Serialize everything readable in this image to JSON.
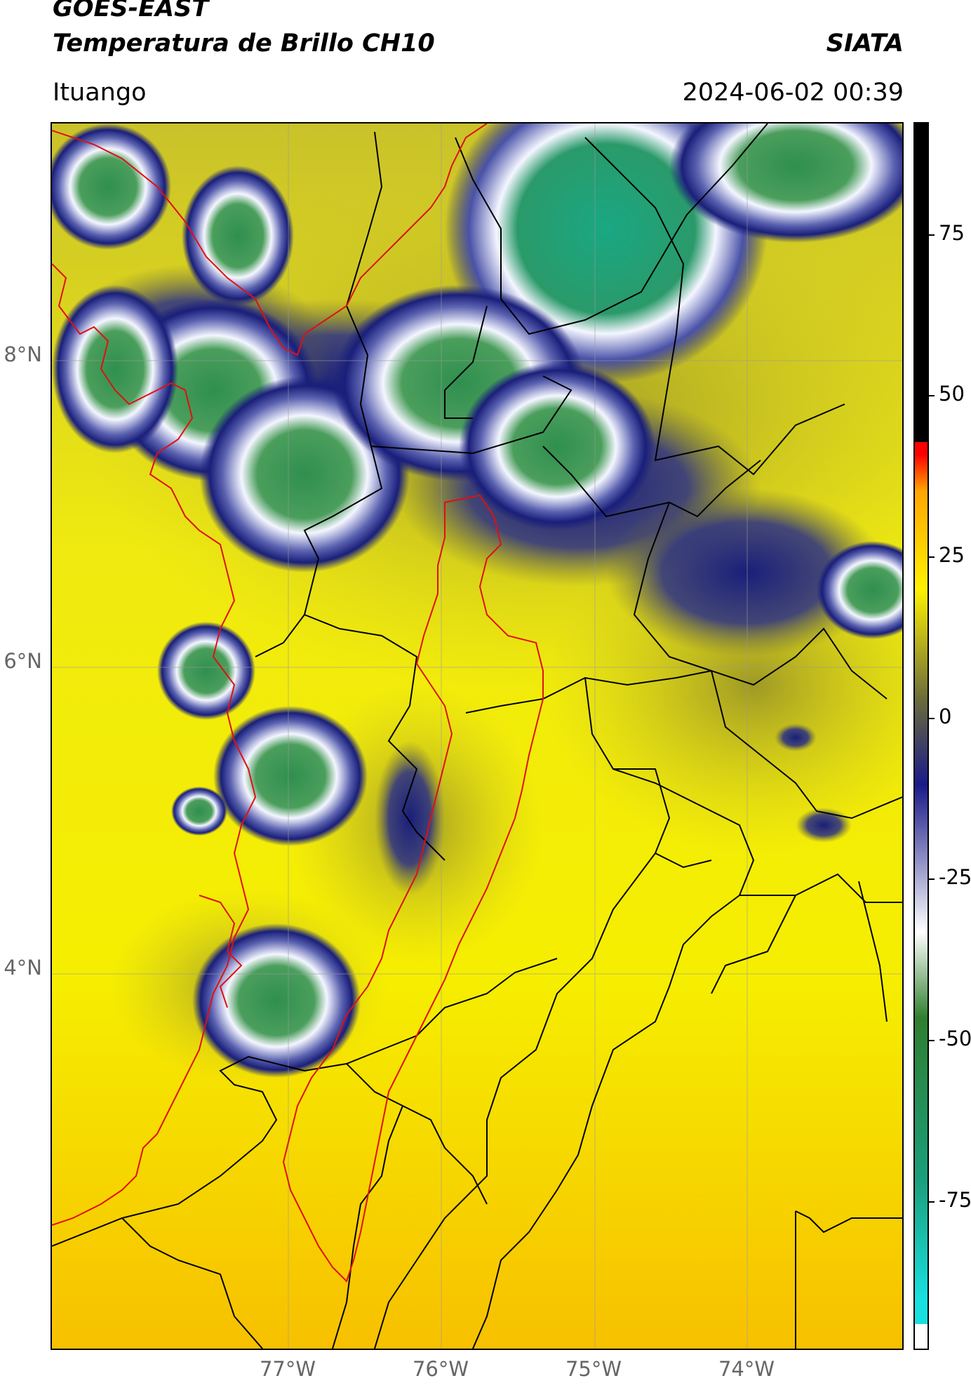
{
  "header": {
    "satellite": "GOES-EAST",
    "product": "Temperatura de Brillo CH10",
    "brand": "SIATA",
    "location": "Ituango",
    "timestamp": "2024-06-02 00:39"
  },
  "map": {
    "lat_labels": [
      "8°N",
      "6°N",
      "4°N"
    ],
    "lon_labels": [
      "77°W",
      "76°W",
      "75°W",
      "74°W"
    ],
    "colors": {
      "warm_bg": "#f5ee00",
      "warm_south": "#f7c200",
      "olive": "#8f8a2a",
      "dark_blue": "#1a1f7a",
      "white": "#f4f6ff",
      "green": "#2f8f4f",
      "teal": "#1a9e7a",
      "coast_line": "#e01010",
      "border_line": "#000000"
    }
  },
  "colorbar": {
    "labels": [
      "75",
      "50",
      "25",
      "0",
      "-25",
      "-50",
      "-75"
    ],
    "stops": [
      "#ffffff",
      "#18e0e0",
      "#1a9e7a",
      "#2f7f2f",
      "#ffffff",
      "#1a1a8a",
      "#6b6b3a",
      "#fff100",
      "#ffa500",
      "#ff0000",
      "#000000"
    ]
  }
}
